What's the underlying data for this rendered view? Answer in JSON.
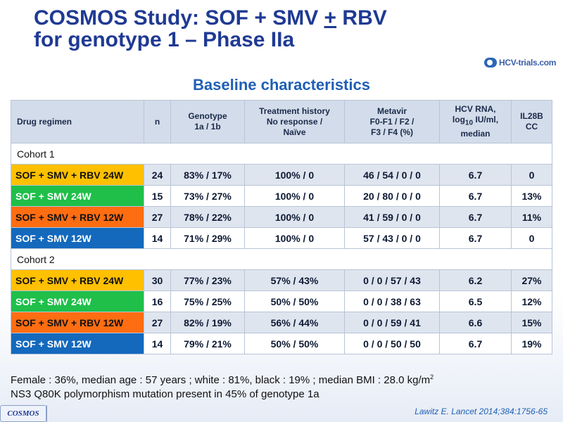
{
  "title": {
    "line1_pre": "COSMOS Study: SOF + SMV ",
    "line1_u": "+",
    "line1_post": " RBV",
    "line2": "for genotype 1 – Phase IIa"
  },
  "logo": {
    "text": "HCV-trials.com"
  },
  "subtitle": "Baseline characteristics",
  "table": {
    "headers": {
      "regimen": "Drug regimen",
      "n": "n",
      "genotype_1": "Genotype",
      "genotype_2": "1a / 1b",
      "history_1": "Treatment history",
      "history_2": "No response /",
      "history_3": "Naïve",
      "metavir_1": "Metavir",
      "metavir_2": "F0-F1 / F2 /",
      "metavir_3": "F3 / F4 (%)",
      "rna_1": "HCV RNA,",
      "rna_2a": "log",
      "rna_2sub": "10",
      "rna_2b": " IU/ml,",
      "rna_3": "median",
      "il28b_1": "IL28B",
      "il28b_2": "CC"
    },
    "cohort1_label": "Cohort  1",
    "cohort2_label": "Cohort  2",
    "cohort1": [
      {
        "regimen": "SOF + SMV + RBV 24W",
        "n": "24",
        "genotype": "83% / 17%",
        "history": "100% / 0",
        "metavir": "46 / 54 / 0 / 0",
        "rna": "6.7",
        "il28b": "0"
      },
      {
        "regimen": "SOF + SMV 24W",
        "n": "15",
        "genotype": "73% / 27%",
        "history": "100% / 0",
        "metavir": "20 / 80 / 0 / 0",
        "rna": "6.7",
        "il28b": "13%"
      },
      {
        "regimen": "SOF + SMV + RBV 12W",
        "n": "27",
        "genotype": "78% / 22%",
        "history": "100% / 0",
        "metavir": "41 / 59 / 0 / 0",
        "rna": "6.7",
        "il28b": "11%"
      },
      {
        "regimen": "SOF + SMV 12W",
        "n": "14",
        "genotype": "71% / 29%",
        "history": "100% / 0",
        "metavir": "57 / 43 / 0 / 0",
        "rna": "6.7",
        "il28b": "0"
      }
    ],
    "cohort2": [
      {
        "regimen": "SOF + SMV + RBV 24W",
        "n": "30",
        "genotype": "77% / 23%",
        "history": "57% / 43%",
        "metavir": "0 / 0 / 57 / 43",
        "rna": "6.2",
        "il28b": "27%"
      },
      {
        "regimen": "SOF + SMV 24W",
        "n": "16",
        "genotype": "75% / 25%",
        "history": "50% / 50%",
        "metavir": "0 / 0 / 38 / 63",
        "rna": "6.5",
        "il28b": "12%"
      },
      {
        "regimen": "SOF + SMV + RBV 12W",
        "n": "27",
        "genotype": "82% / 19%",
        "history": "56% / 44%",
        "metavir": "0 / 0 / 59 / 41",
        "rna": "6.6",
        "il28b": "15%"
      },
      {
        "regimen": "SOF + SMV 12W",
        "n": "14",
        "genotype": "79% / 21%",
        "history": "50% / 50%",
        "metavir": "0 / 0 / 50 / 50",
        "rna": "6.7",
        "il28b": "19%"
      }
    ],
    "regimen_colors": {
      "rbv24": "#ffc000",
      "smv24": "#1fbf4a",
      "rbv12": "#ff6d12",
      "smv12": "#1469bd"
    }
  },
  "footnote": {
    "line1": "Female : 36%, median age : 57 years ; white : 81%, black : 19% ; median BMI : 28.0 kg/m",
    "line1_sup": "2",
    "line2": "NS3 Q80K polymorphism  mutation present in 45% of genotype 1a"
  },
  "citation": "Lawitz  E. Lancet 2014;384:1756-65",
  "badge": "COSMOS"
}
